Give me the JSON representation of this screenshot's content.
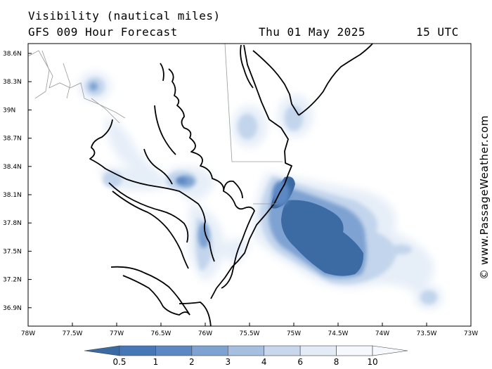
{
  "header": {
    "title": "Visibility (nautical miles)",
    "model": "GFS 009 Hour Forecast",
    "date": "Thu 01 May 2025",
    "time": "15 UTC"
  },
  "credit": "© www.PassageWeather.com",
  "map": {
    "lon_min": -78.0,
    "lon_max": -73.0,
    "lat_min": 36.7,
    "lat_max": 38.75,
    "lat_labels": [
      "38.6N",
      "38.3N",
      "39N",
      "38.7N",
      "38.4N",
      "38.1N",
      "37.8N",
      "37.5N",
      "37.2N",
      "36.9N"
    ],
    "lon_labels": [
      "78W",
      "77.5W",
      "77W",
      "76.5W",
      "76W",
      "75.5W",
      "75W",
      "74.5W",
      "74W",
      "73.5W",
      "73W"
    ],
    "fog_fields": [
      {
        "lon": -74.6,
        "lat": 37.72,
        "vis_nm": 0.5
      },
      {
        "lon": -75.3,
        "lat": 37.9,
        "vis_nm": 0.5
      },
      {
        "lon": -75.15,
        "lat": 38.05,
        "vis_nm": 1
      },
      {
        "lon": -76.25,
        "lat": 38.25,
        "vis_nm": 1
      },
      {
        "lon": -77.3,
        "lat": 39.2,
        "vis_nm": 2
      },
      {
        "lon": -77.0,
        "lat": 38.2,
        "vis_nm": 2
      },
      {
        "lon": -74.25,
        "lat": 37.5,
        "vis_nm": 4
      },
      {
        "lon": -73.5,
        "lat": 36.95,
        "vis_nm": 6
      },
      {
        "lon": -76.0,
        "lat": 37.6,
        "vis_nm": 4
      },
      {
        "lon": -75.5,
        "lat": 38.75,
        "vis_nm": 6
      },
      {
        "lon": -75.0,
        "lat": 38.85,
        "vis_nm": 6
      }
    ]
  },
  "legend": {
    "labels": [
      "0.5",
      "1",
      "2",
      "3",
      "4",
      "6",
      "8",
      "10"
    ],
    "colors": [
      "#3a6aa3",
      "#4677b6",
      "#5b88c4",
      "#7ea2d2",
      "#a6bfe0",
      "#c8d7ec",
      "#e3ebf6",
      "#f5f8fc"
    ]
  }
}
